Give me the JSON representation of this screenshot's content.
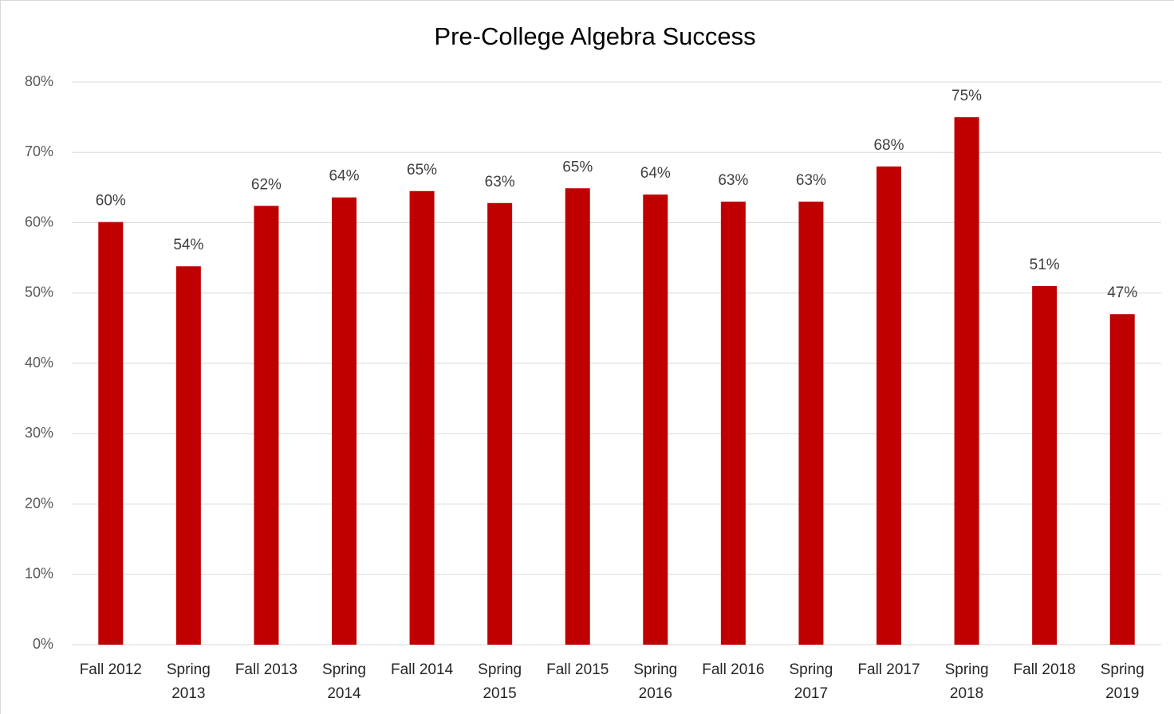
{
  "chart_data": {
    "type": "bar",
    "title": "Pre-College Algebra Success",
    "categories": [
      "Fall 2012",
      "Spring 2013",
      "Fall 2013",
      "Spring 2014",
      "Fall 2014",
      "Spring 2015",
      "Fall 2015",
      "Spring 2016",
      "Fall 2016",
      "Spring 2017",
      "Fall 2017",
      "Spring 2018",
      "Fall 2018",
      "Spring 2019"
    ],
    "values": [
      60.1,
      53.8,
      62.4,
      63.6,
      64.5,
      62.8,
      64.9,
      64.0,
      63.0,
      63.0,
      68.0,
      75.0,
      51.0,
      47.0
    ],
    "value_labels": [
      "60%",
      "54%",
      "62%",
      "64%",
      "65%",
      "63%",
      "65%",
      "64%",
      "63%",
      "63%",
      "68%",
      "75%",
      "51%",
      "47%"
    ],
    "color": "#c00000",
    "ylim": [
      0,
      80
    ],
    "yticks": [
      {
        "value": 0,
        "label": "0%"
      },
      {
        "value": 10,
        "label": "10%"
      },
      {
        "value": 20,
        "label": "20%"
      },
      {
        "value": 30,
        "label": "30%"
      },
      {
        "value": 40,
        "label": "40%"
      },
      {
        "value": 50,
        "label": "50%"
      },
      {
        "value": 60,
        "label": "60%"
      },
      {
        "value": 70,
        "label": "70%"
      },
      {
        "value": 80,
        "label": "80%"
      }
    ],
    "grid": true
  }
}
